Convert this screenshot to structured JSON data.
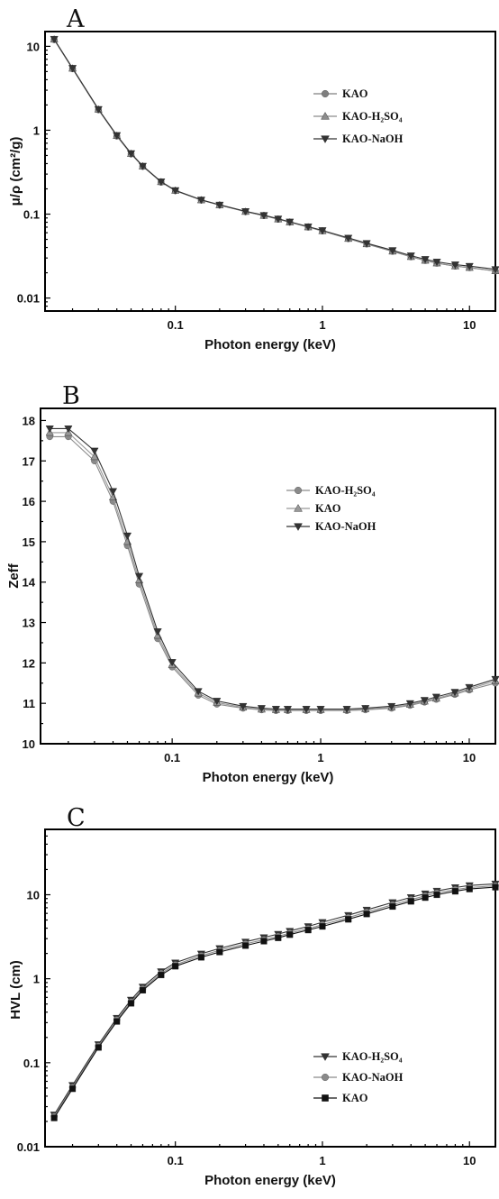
{
  "chart_data": [
    {
      "panel": "A",
      "type": "line",
      "xlabel": "Photon energy (keV)",
      "ylabel": "μ/ρ (cm²/g)",
      "xscale": "log",
      "yscale": "log",
      "xlim": [
        0.013,
        15
      ],
      "ylim": [
        0.007,
        15
      ],
      "xticks": [
        {
          "v": 0.1,
          "label": "0.1"
        },
        {
          "v": 1,
          "label": "1"
        },
        {
          "v": 10,
          "label": "10"
        }
      ],
      "yticks": [
        {
          "v": 0.01,
          "label": "0.01"
        },
        {
          "v": 0.1,
          "label": "0.1"
        },
        {
          "v": 1,
          "label": "1"
        },
        {
          "v": 10,
          "label": "10"
        }
      ],
      "legend_position": "top-right",
      "x": [
        0.015,
        0.02,
        0.03,
        0.04,
        0.05,
        0.06,
        0.08,
        0.1,
        0.15,
        0.2,
        0.3,
        0.4,
        0.5,
        0.6,
        0.8,
        1,
        1.5,
        2,
        3,
        4,
        5,
        6,
        8,
        10,
        15
      ],
      "series": [
        {
          "name": "KAO",
          "marker": "circle",
          "color": "#7f7f7f",
          "values": [
            12,
            5.4,
            1.75,
            0.85,
            0.52,
            0.37,
            0.24,
            0.19,
            0.147,
            0.128,
            0.107,
            0.096,
            0.087,
            0.08,
            0.07,
            0.063,
            0.051,
            0.044,
            0.036,
            0.031,
            0.028,
            0.026,
            0.024,
            0.023,
            0.021
          ]
        },
        {
          "name": "KAO-H₂SO₄",
          "marker": "triangle-up",
          "color": "#8c8c8c",
          "values": [
            12.1,
            5.45,
            1.77,
            0.86,
            0.525,
            0.372,
            0.242,
            0.191,
            0.147,
            0.128,
            0.107,
            0.096,
            0.087,
            0.08,
            0.07,
            0.063,
            0.051,
            0.044,
            0.036,
            0.031,
            0.028,
            0.026,
            0.024,
            0.023,
            0.021
          ]
        },
        {
          "name": "KAO-NaOH",
          "marker": "triangle-down",
          "color": "#333333",
          "values": [
            12.2,
            5.5,
            1.78,
            0.87,
            0.53,
            0.375,
            0.244,
            0.192,
            0.148,
            0.129,
            0.108,
            0.097,
            0.088,
            0.081,
            0.071,
            0.064,
            0.052,
            0.045,
            0.037,
            0.032,
            0.029,
            0.027,
            0.025,
            0.024,
            0.022
          ]
        }
      ]
    },
    {
      "panel": "B",
      "type": "line",
      "xlabel": "Photon energy (keV)",
      "ylabel": "Zeff",
      "xscale": "log",
      "yscale": "linear",
      "xlim": [
        0.013,
        15
      ],
      "ylim": [
        10,
        18.3
      ],
      "xticks": [
        {
          "v": 0.1,
          "label": "0.1"
        },
        {
          "v": 1,
          "label": "1"
        },
        {
          "v": 10,
          "label": "10"
        }
      ],
      "yticks": [
        {
          "v": 10,
          "label": "10"
        },
        {
          "v": 11,
          "label": "11"
        },
        {
          "v": 12,
          "label": "12"
        },
        {
          "v": 13,
          "label": "13"
        },
        {
          "v": 14,
          "label": "14"
        },
        {
          "v": 15,
          "label": "15"
        },
        {
          "v": 16,
          "label": "16"
        },
        {
          "v": 17,
          "label": "17"
        },
        {
          "v": 18,
          "label": "18"
        }
      ],
      "legend_position": "top-right",
      "x": [
        0.015,
        0.02,
        0.03,
        0.04,
        0.05,
        0.06,
        0.08,
        0.1,
        0.15,
        0.2,
        0.3,
        0.4,
        0.5,
        0.6,
        0.8,
        1,
        1.5,
        2,
        3,
        4,
        5,
        6,
        8,
        10,
        15
      ],
      "series": [
        {
          "name": "KAO-H₂SO₄",
          "marker": "circle",
          "color": "#8a8a8a",
          "values": [
            17.6,
            17.6,
            17.0,
            16.0,
            14.9,
            13.95,
            12.6,
            11.9,
            11.2,
            10.98,
            10.88,
            10.84,
            10.82,
            10.82,
            10.82,
            10.82,
            10.82,
            10.84,
            10.88,
            10.95,
            11.03,
            11.1,
            11.22,
            11.33,
            11.5
          ]
        },
        {
          "name": "KAO",
          "marker": "triangle-up",
          "color": "#999999",
          "values": [
            17.7,
            17.7,
            17.1,
            16.1,
            15.0,
            14.05,
            12.68,
            11.95,
            11.25,
            11.02,
            10.9,
            10.85,
            10.84,
            10.84,
            10.84,
            10.84,
            10.84,
            10.86,
            10.9,
            10.97,
            11.05,
            11.12,
            11.25,
            11.36,
            11.55
          ]
        },
        {
          "name": "KAO-NaOH",
          "marker": "triangle-down",
          "color": "#333333",
          "values": [
            17.8,
            17.8,
            17.25,
            16.25,
            15.15,
            14.15,
            12.78,
            12.02,
            11.3,
            11.06,
            10.93,
            10.88,
            10.86,
            10.86,
            10.86,
            10.86,
            10.86,
            10.88,
            10.93,
            11.0,
            11.08,
            11.16,
            11.28,
            11.4,
            11.6
          ]
        }
      ]
    },
    {
      "panel": "C",
      "type": "line",
      "xlabel": "Photon energy (keV)",
      "ylabel": "HVL (cm)",
      "xscale": "log",
      "yscale": "log",
      "xlim": [
        0.013,
        15
      ],
      "ylim": [
        0.01,
        60
      ],
      "xticks": [
        {
          "v": 0.1,
          "label": "0.1"
        },
        {
          "v": 1,
          "label": "1"
        },
        {
          "v": 10,
          "label": "10"
        }
      ],
      "yticks": [
        {
          "v": 0.01,
          "label": "0.01"
        },
        {
          "v": 0.1,
          "label": "0.1"
        },
        {
          "v": 1,
          "label": "1"
        },
        {
          "v": 10,
          "label": "10"
        }
      ],
      "legend_position": "right",
      "x": [
        0.015,
        0.02,
        0.03,
        0.04,
        0.05,
        0.06,
        0.08,
        0.1,
        0.15,
        0.2,
        0.3,
        0.4,
        0.5,
        0.6,
        0.8,
        1,
        1.5,
        2,
        3,
        4,
        5,
        6,
        8,
        10,
        15
      ],
      "series": [
        {
          "name": "KAO-H₂SO₄",
          "marker": "triangle-down",
          "color": "#333333",
          "values": [
            0.024,
            0.054,
            0.165,
            0.34,
            0.56,
            0.8,
            1.22,
            1.55,
            1.98,
            2.3,
            2.75,
            3.1,
            3.4,
            3.7,
            4.2,
            4.7,
            5.7,
            6.6,
            8.1,
            9.3,
            10.3,
            11.1,
            12.2,
            12.9,
            13.5
          ]
        },
        {
          "name": "KAO-NaOH",
          "marker": "circle",
          "color": "#8a8a8a",
          "values": [
            0.023,
            0.051,
            0.158,
            0.325,
            0.53,
            0.76,
            1.16,
            1.47,
            1.88,
            2.18,
            2.6,
            2.92,
            3.2,
            3.5,
            3.95,
            4.4,
            5.35,
            6.2,
            7.6,
            8.75,
            9.7,
            10.5,
            11.5,
            12.2,
            12.8
          ]
        },
        {
          "name": "KAO",
          "marker": "square",
          "color": "#111111",
          "values": [
            0.022,
            0.049,
            0.152,
            0.31,
            0.51,
            0.73,
            1.11,
            1.41,
            1.8,
            2.08,
            2.48,
            2.8,
            3.07,
            3.35,
            3.8,
            4.2,
            5.1,
            5.9,
            7.25,
            8.35,
            9.25,
            10.0,
            11.0,
            11.7,
            12.3
          ]
        }
      ]
    }
  ]
}
